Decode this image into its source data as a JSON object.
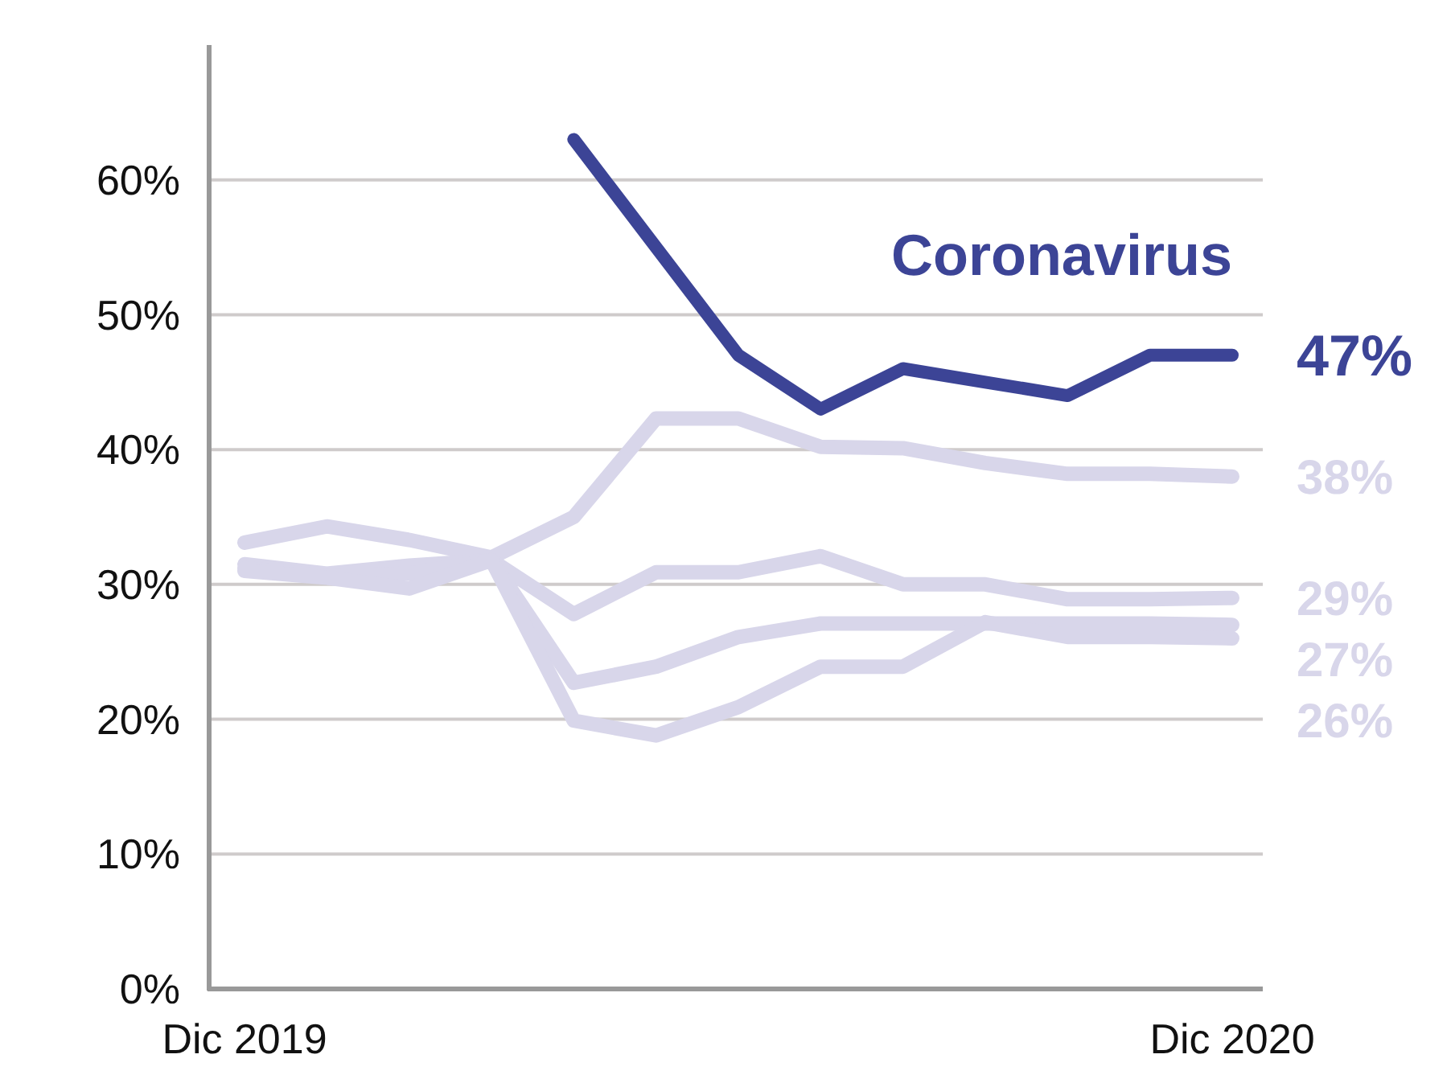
{
  "chart_data": {
    "type": "line",
    "categories": [
      "Dic 2019",
      null,
      null,
      null,
      null,
      null,
      null,
      null,
      null,
      null,
      null,
      null,
      "Dic 2020"
    ],
    "series": [
      {
        "color": "#d8d6ea",
        "values": [
          33.1,
          34.3,
          33.3,
          32,
          35,
          42.3,
          42.3,
          40.2,
          40.1,
          39,
          38.2,
          38.2,
          38
        ],
        "value_labels": [
          null,
          null,
          null,
          null,
          null,
          null,
          null,
          null,
          null,
          null,
          null,
          null,
          "38%"
        ]
      },
      {
        "color": "#d8d6ea",
        "values": [
          31.5,
          30.8,
          31.4,
          31.8,
          27.8,
          30.9,
          30.9,
          32.1,
          30,
          30,
          28.9,
          28.9,
          29
        ],
        "value_labels": [
          null,
          null,
          null,
          null,
          null,
          null,
          null,
          null,
          null,
          null,
          null,
          null,
          "29%"
        ]
      },
      {
        "color": "#d8d6ea",
        "values": [
          31.2,
          30.6,
          30.8,
          31.8,
          22.7,
          23.9,
          26.1,
          27.1,
          27.1,
          27.1,
          27.1,
          27.1,
          27
        ],
        "value_labels": [
          null,
          null,
          null,
          null,
          null,
          null,
          null,
          null,
          null,
          null,
          null,
          null,
          "27%"
        ]
      },
      {
        "color": "#d8d6ea",
        "values": [
          31,
          30.5,
          29.7,
          31.8,
          19.9,
          18.8,
          20.9,
          23.9,
          23.9,
          27.2,
          26.1,
          26.1,
          26
        ],
        "value_labels": [
          null,
          null,
          null,
          null,
          null,
          null,
          null,
          null,
          null,
          null,
          null,
          null,
          "26%"
        ]
      },
      {
        "name": "Coronavirus",
        "color": "#3c4496",
        "values": [
          null,
          null,
          null,
          null,
          63,
          55,
          47,
          43,
          46,
          45,
          44,
          47,
          47
        ],
        "value_labels": [
          null,
          null,
          null,
          null,
          null,
          null,
          null,
          null,
          null,
          null,
          null,
          null,
          "47%"
        ]
      }
    ],
    "ylim": [
      0,
      70
    ],
    "yticks": [
      {
        "value": 0,
        "label": "0%"
      },
      {
        "value": 10,
        "label": "10%"
      },
      {
        "value": 20,
        "label": "20%"
      },
      {
        "value": 30,
        "label": "30%"
      },
      {
        "value": 40,
        "label": "40%"
      },
      {
        "value": 50,
        "label": "50%"
      },
      {
        "value": 60,
        "label": "60%"
      }
    ],
    "grid": "y",
    "marker": "none",
    "line_style": "solid"
  }
}
